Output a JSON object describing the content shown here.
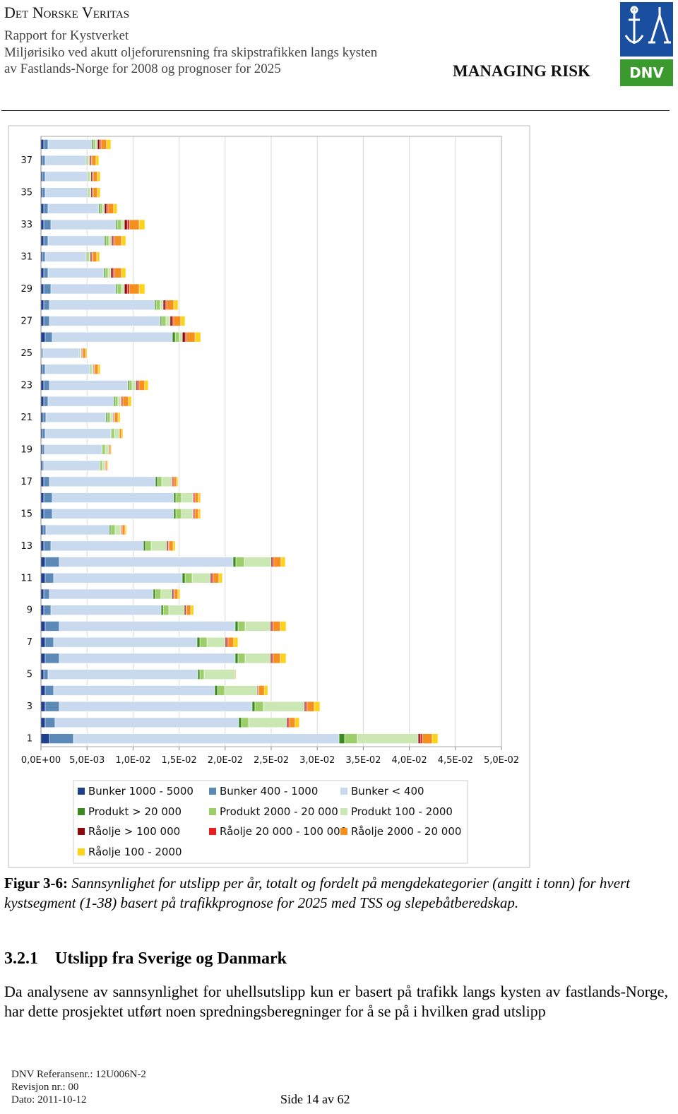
{
  "header": {
    "company": "Det Norske Veritas",
    "report_for": "Rapport for Kystverket",
    "title_lines": [
      "Miljørisiko ved akutt oljeforurensning fra skipstrafikken langs kysten",
      "av Fastlands-Norge for 2008 og prognoser for 2025"
    ],
    "slogan": "MANAGING RISK",
    "logo_text": "DNV"
  },
  "chart_data": {
    "type": "stacked-barh",
    "categories": [
      "1",
      null,
      "3",
      null,
      "5",
      null,
      "7",
      null,
      "9",
      null,
      "11",
      null,
      "13",
      null,
      "15",
      null,
      "17",
      null,
      "19",
      null,
      "21",
      null,
      "23",
      null,
      "25",
      null,
      "27",
      null,
      "29",
      null,
      "31",
      null,
      "33",
      null,
      "35",
      null,
      "37",
      null
    ],
    "xlim": [
      0,
      0.05
    ],
    "xticks": [
      {
        "value": 0,
        "label": "0,0E+00"
      },
      {
        "value": 0.005,
        "label": "5,0E-03"
      },
      {
        "value": 0.01,
        "label": "1,0E-02"
      },
      {
        "value": 0.015,
        "label": "1,5E-02"
      },
      {
        "value": 0.02,
        "label": "2,0E-02"
      },
      {
        "value": 0.025,
        "label": "2,5E-02"
      },
      {
        "value": 0.03,
        "label": "3,0E-02"
      },
      {
        "value": 0.035,
        "label": "3,5E-02"
      },
      {
        "value": 0.04,
        "label": "4,0E-02"
      },
      {
        "value": 0.045,
        "label": "4,5E-02"
      },
      {
        "value": 0.05,
        "label": "5,0E-02"
      }
    ],
    "grid": true,
    "legend": "bottom",
    "series": [
      {
        "name": "Bunker 1000 - 5000",
        "color": "#1f3f8f",
        "values": [
          0.00092,
          0.00046,
          0.00046,
          0.00046,
          0.00031,
          0.00046,
          0.00046,
          0.00046,
          0.00031,
          0.00031,
          0.00046,
          0.00046,
          0.00031,
          0.00023,
          0.00031,
          0.00031,
          0.00031,
          0.00015,
          0.00015,
          0.00015,
          0.00023,
          0.00031,
          0.00031,
          0.00015,
          8e-05,
          0.00046,
          0.00031,
          0.00031,
          0.00031,
          0.00031,
          0.00015,
          0.00031,
          0.00031,
          0.00031,
          0.00015,
          0.00015,
          0.00015,
          0.00031
        ]
      },
      {
        "name": "Bunker 400 - 1000",
        "color": "#5b8ab8",
        "values": [
          0.00261,
          0.00107,
          0.00153,
          0.00092,
          0.00046,
          0.00153,
          0.00092,
          0.00153,
          0.00077,
          0.00061,
          0.00092,
          0.00153,
          0.00077,
          0.00031,
          0.00092,
          0.00092,
          0.00061,
          0.00015,
          0.00023,
          0.00031,
          0.00031,
          0.00046,
          0.00061,
          0.00031,
          0.00015,
          0.00077,
          0.00061,
          0.00061,
          0.00077,
          0.00046,
          0.00031,
          0.00046,
          0.00077,
          0.00046,
          0.00031,
          0.00031,
          0.00031,
          0.00046
        ]
      },
      {
        "name": "Bunker < 400",
        "color": "#c9d9ee",
        "values": [
          0.02884,
          0.01994,
          0.02094,
          0.01749,
          0.01626,
          0.0191,
          0.01557,
          0.0191,
          0.01197,
          0.01127,
          0.01396,
          0.01887,
          0.01005,
          0.0069,
          0.01319,
          0.01319,
          0.01151,
          0.00606,
          0.00621,
          0.00713,
          0.00652,
          0.00713,
          0.00851,
          0.00483,
          0.00391,
          0.01304,
          0.01204,
          0.01143,
          0.00706,
          0.00606,
          0.00445,
          0.00614,
          0.00706,
          0.00552,
          0.0046,
          0.0046,
          0.00445,
          0.00476
        ]
      },
      {
        "name": "Produkt > 20 000",
        "color": "#3a8a20",
        "values": [
          0.00061,
          0.00031,
          0.00031,
          0.00031,
          0.00023,
          0.00031,
          0.00031,
          0.00031,
          0.00023,
          0.00023,
          0.00031,
          0.00031,
          0.00023,
          0.00015,
          0.00023,
          0.00023,
          0.00023,
          8e-05,
          8e-05,
          8e-05,
          0.00015,
          0.00015,
          0.00015,
          8e-05,
          8e-05,
          0.00031,
          0.00015,
          0.00015,
          0.00015,
          0.00015,
          8e-05,
          0.00015,
          0.00015,
          0.00015,
          8e-05,
          8e-05,
          8e-05,
          0.00015
        ]
      },
      {
        "name": "Produkt 2000 - 20 000",
        "color": "#9ccf6a",
        "values": [
          0.00138,
          0.00077,
          0.00092,
          0.00077,
          0.00046,
          0.00077,
          0.00077,
          0.00077,
          0.00061,
          0.00061,
          0.00077,
          0.00092,
          0.00061,
          0.00046,
          0.00061,
          0.00061,
          0.00046,
          0.00023,
          0.00031,
          0.00031,
          0.00031,
          0.00031,
          0.00031,
          0.00015,
          8e-05,
          0.00046,
          0.00046,
          0.00046,
          0.00046,
          0.00031,
          0.00023,
          0.00031,
          0.00046,
          0.00023,
          0.00015,
          0.00015,
          0.00015,
          0.00023
        ]
      },
      {
        "name": "Produkt 100 - 2000",
        "color": "#cbe8b4",
        "values": [
          0.0066,
          0.00414,
          0.00445,
          0.00353,
          0.00337,
          0.00276,
          0.00199,
          0.00276,
          0.00169,
          0.00123,
          0.00199,
          0.00291,
          0.00169,
          0.00061,
          0.00123,
          0.00123,
          0.00107,
          0.00031,
          0.00038,
          0.00054,
          0.00031,
          0.00031,
          0.00046,
          0.00015,
          8e-05,
          0.00031,
          0.00046,
          0.00031,
          0.00031,
          0.00031,
          0.00015,
          0.00031,
          0.00031,
          0.00023,
          0.00015,
          0.00015,
          0.00015,
          0.00023
        ]
      },
      {
        "name": "Råolje > 100 000",
        "color": "#8b0a0a",
        "values": [
          0.00023,
          0.00015,
          0.00015,
          8e-05,
          0,
          0.00015,
          0.00015,
          0.00015,
          0.00015,
          0.00015,
          0.00015,
          0.00015,
          0.00015,
          8e-05,
          8e-05,
          8e-05,
          8e-05,
          0,
          8e-05,
          0,
          8e-05,
          8e-05,
          0.00015,
          8e-05,
          8e-05,
          0.00031,
          0.00023,
          0.00023,
          0.00031,
          0.00023,
          0.00015,
          0.00015,
          0.00031,
          0.00023,
          0.00015,
          0.00015,
          0.00015,
          0.00023
        ]
      },
      {
        "name": "Råolje 20 000 - 100 000",
        "color": "#e62020",
        "values": [
          0.00023,
          0.00015,
          0.00015,
          8e-05,
          0,
          0.00015,
          0.00015,
          0.00015,
          8e-05,
          8e-05,
          0.00015,
          0.00015,
          8e-05,
          8e-05,
          0.00015,
          0.00015,
          0.00015,
          8e-05,
          0,
          0,
          8e-05,
          0.00015,
          0.00015,
          8e-05,
          8e-05,
          0.00015,
          0.00015,
          0.00015,
          0.00023,
          0.00015,
          8e-05,
          0.00015,
          0.00023,
          0.00015,
          8e-05,
          8e-05,
          8e-05,
          0.00015
        ]
      },
      {
        "name": "Råolje 2000 - 20 000",
        "color": "#f5901e",
        "values": [
          0.00107,
          0.00061,
          0.00077,
          0.00061,
          8e-05,
          0.00077,
          0.00061,
          0.00077,
          0.00046,
          0.00038,
          0.00061,
          0.00077,
          0.00046,
          0.00031,
          0.00038,
          0.00038,
          0.00031,
          0.00015,
          0.00015,
          0.00023,
          0.00038,
          0.00061,
          0.00061,
          0.00038,
          0.00031,
          0.00092,
          0.00077,
          0.00077,
          0.00107,
          0.00077,
          0.00046,
          0.00077,
          0.00107,
          0.00061,
          0.00046,
          0.00046,
          0.00046,
          0.00061
        ]
      },
      {
        "name": "Råolje 100 - 2000",
        "color": "#ffd21a",
        "values": [
          0.00061,
          0.00046,
          0.00061,
          0.00038,
          0,
          0.00061,
          0.00046,
          0.00061,
          0.00031,
          0.00023,
          0.00038,
          0.00046,
          0.00023,
          0.00015,
          0.00023,
          0.00023,
          0.00015,
          8e-05,
          8e-05,
          0.00015,
          0.00023,
          0.00031,
          0.00038,
          0.00023,
          0.00015,
          0.00061,
          0.00046,
          0.00046,
          0.00061,
          0.00046,
          0.00031,
          0.00046,
          0.00061,
          0.00038,
          0.00031,
          0.00031,
          0.00031,
          0.00046
        ]
      }
    ]
  },
  "caption": {
    "label": "Figur 3-6:",
    "text": "Sannsynlighet for utslipp per år, totalt og fordelt på mengdekategorier (angitt i tonn) for hvert kystsegment (1-38) basert på trafikkprognose for 2025 med TSS og slepebåtberedskap."
  },
  "section": {
    "number": "3.2.1",
    "title": "Utslipp fra Sverige og Danmark",
    "paragraph": "Da analysene av sannsynlighet for uhellsutslipp kun er basert på trafikk langs kysten av fastlands-Norge, har dette prosjektet utført noen spredningsberegninger for å se på i hvilken grad utslipp"
  },
  "footer": {
    "reference": "DNV Referansenr.: 12U006N-2",
    "revision": "Revisjon nr.: 00",
    "date": "Dato: 2011-10-12",
    "page": "Side 14 av 62"
  }
}
